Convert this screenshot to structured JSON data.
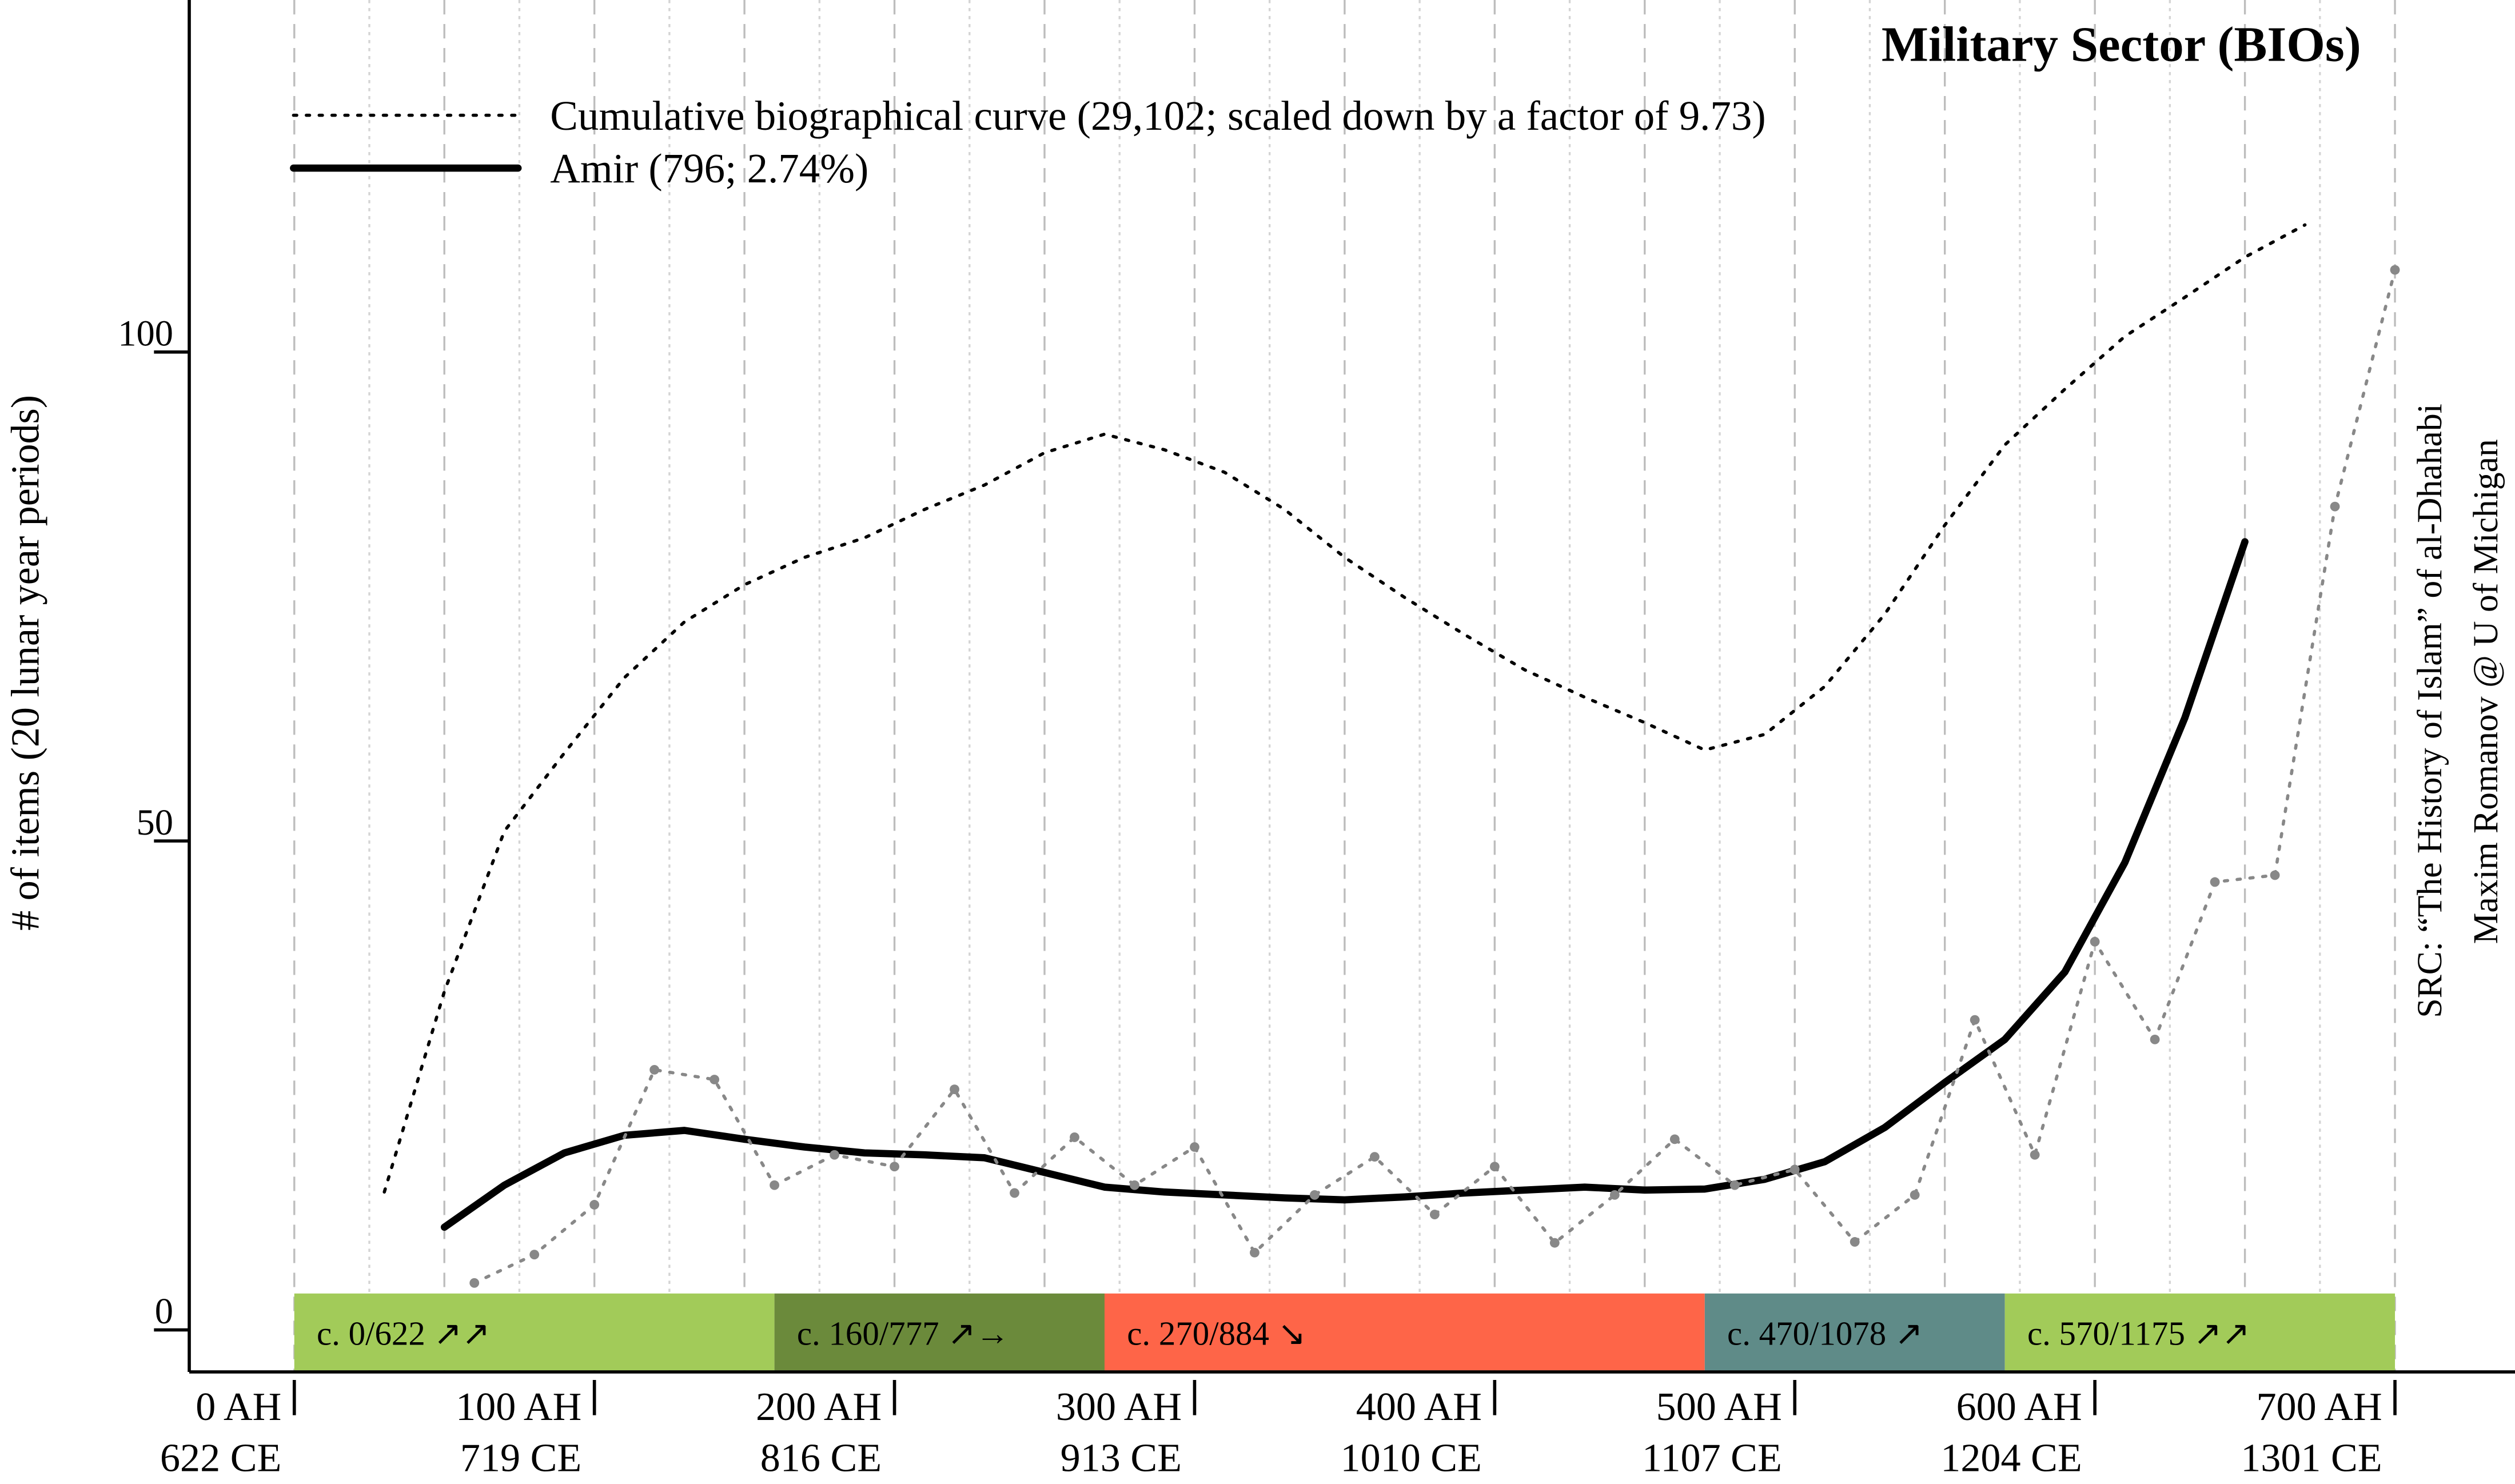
{
  "chart_data": {
    "type": "line",
    "title": "Military Sector (BIOs)",
    "y_label": "# of items (20 lunar year periods)",
    "source_lines": [
      "SRC: “The History of Islam” of al-Dhahabi",
      "Maxim Romanov @ U of Michigan"
    ],
    "xlim": [
      -35,
      740
    ],
    "ylim": [
      -4.3,
      136
    ],
    "yticks": [
      0,
      50,
      100
    ],
    "xticks": [
      {
        "value": 0,
        "label": "0 AH",
        "label_ce": "622 CE"
      },
      {
        "value": 100,
        "label": "100 AH",
        "label_ce": "719 CE"
      },
      {
        "value": 200,
        "label": "200 AH",
        "label_ce": "816 CE"
      },
      {
        "value": 300,
        "label": "300 AH",
        "label_ce": "913 CE"
      },
      {
        "value": 400,
        "label": "400 AH",
        "label_ce": "1010 CE"
      },
      {
        "value": 500,
        "label": "500 AH",
        "label_ce": "1107 CE"
      },
      {
        "value": 600,
        "label": "600 AH",
        "label_ce": "1204 CE"
      },
      {
        "value": 700,
        "label": "700 AH",
        "label_ce": "1301 CE"
      }
    ],
    "xgrid_major": [
      0,
      50,
      100,
      150,
      200,
      250,
      300,
      350,
      400,
      450,
      500,
      550,
      600,
      650,
      700
    ],
    "xgrid_minor": [
      25,
      75,
      125,
      175,
      225,
      275,
      325,
      375,
      425,
      475,
      525,
      575,
      625,
      675
    ],
    "grid": true,
    "series": [
      {
        "name": "Cumulative biographical curve (29,102; scaled down by a factor of 9.73)",
        "color": "#000000",
        "style": "dotted",
        "width": 2,
        "x": [
          30,
          50,
          70,
          90,
          110,
          130,
          150,
          170,
          190,
          210,
          230,
          250,
          270,
          290,
          310,
          330,
          350,
          370,
          390,
          410,
          430,
          450,
          470,
          490,
          510,
          530,
          550,
          570,
          590,
          610,
          630,
          650,
          670
        ],
        "values": [
          14.1,
          34.6,
          51,
          59,
          66.7,
          72.4,
          76.2,
          79,
          81,
          83.9,
          86.4,
          89.7,
          91.6,
          90,
          87.7,
          83.9,
          79,
          74.9,
          71.1,
          67.5,
          64.7,
          62.1,
          59.3,
          60.9,
          65.8,
          73.2,
          82.3,
          90.5,
          96.2,
          101.6,
          105.6,
          109.7,
          113
        ]
      },
      {
        "name": "Amir (796; 2.74%)",
        "color": "#000000",
        "style": "solid",
        "width": 4.5,
        "x": [
          50,
          70,
          90,
          110,
          130,
          150,
          170,
          190,
          210,
          230,
          250,
          270,
          290,
          310,
          330,
          350,
          370,
          390,
          410,
          430,
          450,
          470,
          490,
          510,
          530,
          550,
          570,
          590,
          610,
          630,
          650
        ],
        "values": [
          10.5,
          14.8,
          18.1,
          19.9,
          20.4,
          19.5,
          18.7,
          18.1,
          17.9,
          17.6,
          16.1,
          14.6,
          14.1,
          13.8,
          13.5,
          13.3,
          13.6,
          14,
          14.3,
          14.6,
          14.3,
          14.4,
          15.4,
          17.2,
          20.7,
          25.3,
          29.7,
          36.6,
          47.8,
          62.6,
          80.6
        ]
      },
      {
        "color": "#888888",
        "style": "dotted",
        "width": 2,
        "markers": true,
        "x": [
          60,
          80,
          100,
          120,
          140,
          160,
          180,
          200,
          220,
          240,
          260,
          280,
          300,
          320,
          340,
          360,
          380,
          400,
          420,
          440,
          460,
          480,
          500,
          520,
          540,
          560,
          580,
          600,
          620,
          640,
          660,
          680,
          700
        ],
        "values": [
          4.8,
          7.7,
          12.8,
          26.6,
          25.6,
          14.8,
          17.9,
          16.7,
          24.6,
          14,
          19.7,
          14.8,
          18.7,
          7.9,
          13.8,
          17.7,
          11.8,
          16.7,
          8.9,
          13.8,
          19.5,
          14.8,
          16.4,
          9,
          13.8,
          31.7,
          17.9,
          39.7,
          29.7,
          45.8,
          46.5,
          84.2,
          108.4
        ]
      }
    ],
    "periods": [
      {
        "start": 0,
        "end": 160,
        "label": "c. 0/622 ↗↗",
        "color": "#a2cb59"
      },
      {
        "start": 160,
        "end": 270,
        "label": "c. 160/777 ↗→",
        "color": "#6b8a3b"
      },
      {
        "start": 270,
        "end": 470,
        "label": "c. 270/884 ↘",
        "color": "#fe6548"
      },
      {
        "start": 470,
        "end": 570,
        "label": "c. 470/1078 ↗",
        "color": "#5f8b88"
      },
      {
        "start": 570,
        "end": 700,
        "label": "c. 570/1175 ↗↗",
        "color": "#a2cb59"
      }
    ]
  }
}
